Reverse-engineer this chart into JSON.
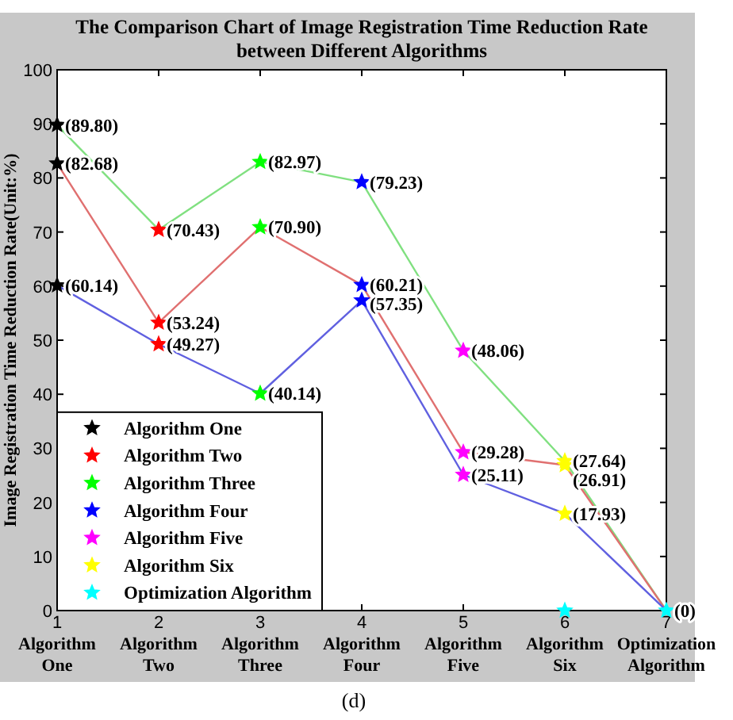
{
  "chart_data": {
    "type": "line",
    "title": "The Comparison Chart of Image Registration Time Reduction Rate\nbetween Different Algorithms",
    "ylabel": "Image Registration Time Reduction Rate(Unit:%)",
    "annotations": [
      "(d)"
    ],
    "x": [
      1,
      2,
      3,
      4,
      5,
      6,
      7
    ],
    "xlim": [
      1,
      7
    ],
    "xticks": [
      {
        "value": 1,
        "label": "1\nAlgorithm\nOne"
      },
      {
        "value": 2,
        "label": "2\nAlgorithm\nTwo"
      },
      {
        "value": 3,
        "label": "3\nAlgorithm\nThree"
      },
      {
        "value": 4,
        "label": "4\nAlgorithm\nFour"
      },
      {
        "value": 5,
        "label": "5\nAlgorithm\nFive"
      },
      {
        "value": 6,
        "label": "6\nAlgorithm\nSix"
      },
      {
        "value": 7,
        "label": "7\nOptimization\nAlgorithm"
      }
    ],
    "ylim": [
      0,
      100
    ],
    "yticks": [
      0,
      10,
      20,
      30,
      40,
      50,
      60,
      70,
      80,
      90,
      100
    ],
    "grid": false,
    "legend": "bottom left",
    "line_style": "solid",
    "series": [
      {
        "color": "#80e080",
        "marker": "none",
        "values": [
          89.8,
          70.43,
          82.97,
          79.23,
          48.06,
          27.64,
          0
        ]
      },
      {
        "color": "#e07070",
        "marker": "none",
        "values": [
          82.68,
          53.24,
          70.9,
          60.21,
          29.28,
          26.91,
          0
        ]
      },
      {
        "color": "#6060e0",
        "marker": "none",
        "values": [
          60.14,
          49.27,
          40.14,
          57.35,
          25.11,
          17.93,
          0
        ]
      },
      {
        "type": "scatter",
        "name": "Algorithm One",
        "color": "#000000",
        "marker": "star",
        "x": [
          1,
          1,
          1
        ],
        "values": [
          89.8,
          82.68,
          60.14
        ],
        "value_labels": [
          "(89.80)",
          "(82.68)",
          "(60.14)"
        ]
      },
      {
        "type": "scatter",
        "name": "Algorithm Two",
        "color": "#ff0000",
        "marker": "star",
        "x": [
          2,
          2,
          2
        ],
        "values": [
          70.43,
          53.24,
          49.27
        ],
        "value_labels": [
          "(70.43)",
          "(53.24)",
          "(49.27)"
        ]
      },
      {
        "type": "scatter",
        "name": "Algorithm Three",
        "color": "#00ff00",
        "marker": "star",
        "x": [
          3,
          3,
          3
        ],
        "values": [
          82.97,
          70.9,
          40.14
        ],
        "value_labels": [
          "(82.97)",
          "(70.90)",
          "(40.14)"
        ]
      },
      {
        "type": "scatter",
        "name": "Algorithm Four",
        "color": "#0000ff",
        "marker": "star",
        "x": [
          4,
          4,
          4
        ],
        "values": [
          79.23,
          60.21,
          57.35
        ],
        "value_labels": [
          "(79.23)",
          "(60.21)",
          "(57.35)"
        ]
      },
      {
        "type": "scatter",
        "name": "Algorithm Five",
        "color": "#ff00ff",
        "marker": "star",
        "x": [
          5,
          5,
          5
        ],
        "values": [
          48.06,
          29.28,
          25.11
        ],
        "value_labels": [
          "(48.06)",
          "(29.28)",
          "(25.11)"
        ]
      },
      {
        "type": "scatter",
        "name": "Algorithm Six",
        "color": "#ffff00",
        "marker": "star",
        "x": [
          6,
          6,
          6
        ],
        "values": [
          27.64,
          26.91,
          17.93
        ],
        "value_labels": [
          "(27.64)",
          "(26.91)",
          "(17.93)"
        ]
      },
      {
        "type": "scatter",
        "name": "Optimization Algorithm",
        "color": "#00ffff",
        "marker": "star",
        "x": [
          6,
          7
        ],
        "values": [
          0,
          0
        ],
        "value_labels": [
          null,
          "(0)"
        ]
      }
    ]
  }
}
